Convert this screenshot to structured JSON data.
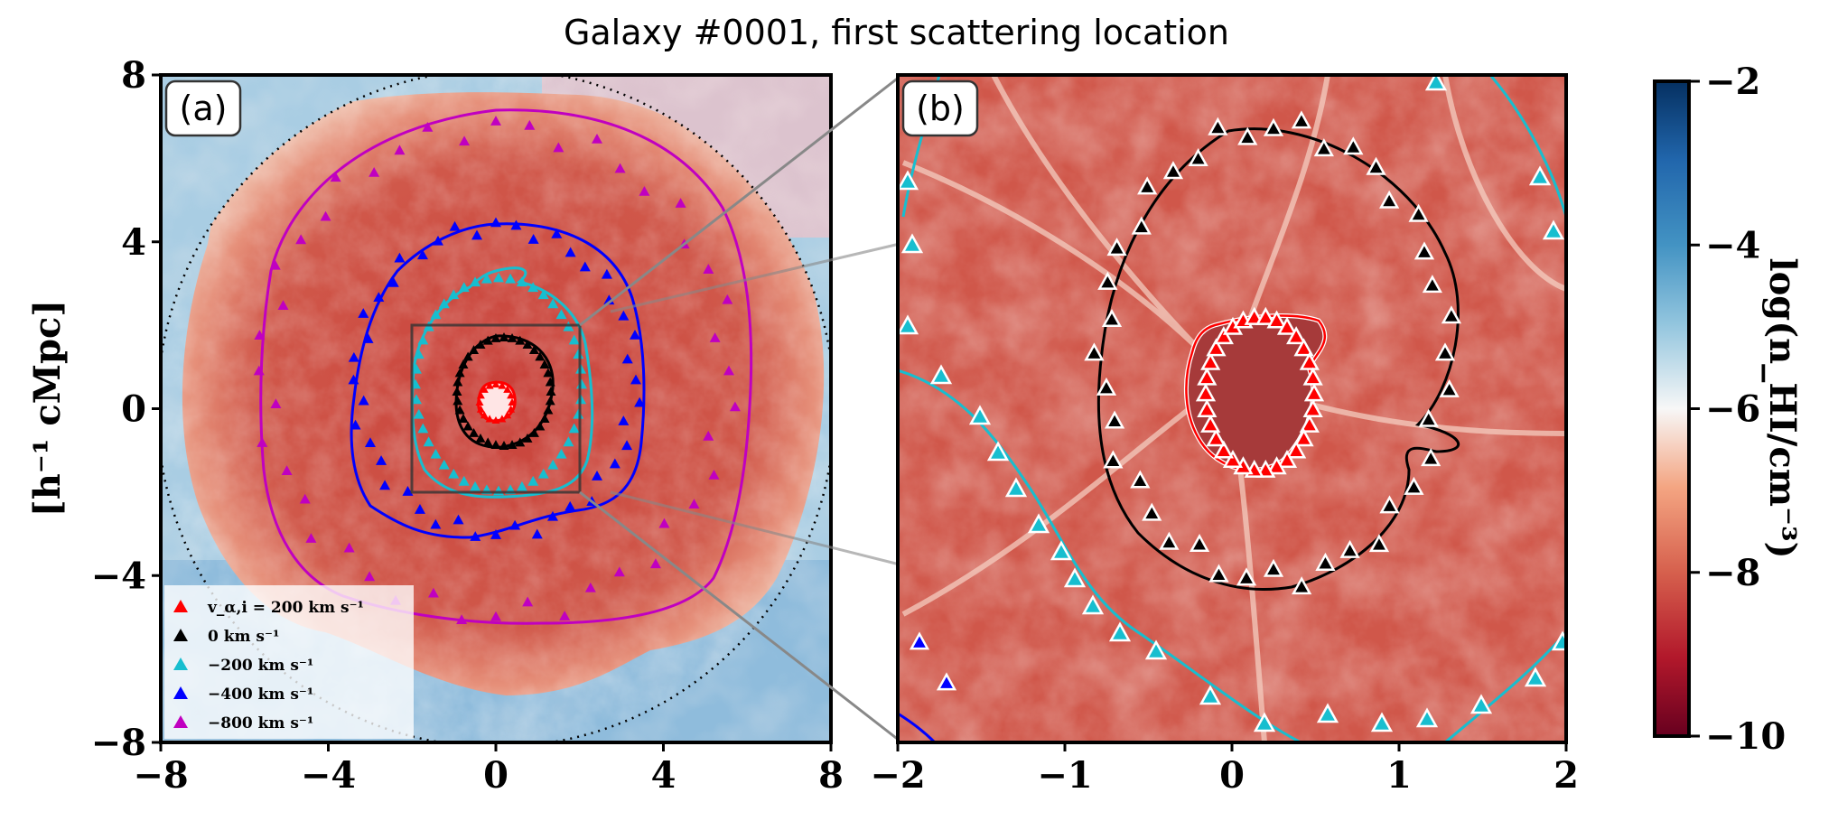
{
  "title": "Galaxy #0001, first scattering location",
  "panels": {
    "a": {
      "label": "(a)"
    },
    "b": {
      "label": "(b)"
    }
  },
  "ylabel": "[h⁻¹ cMpc]",
  "colorbar": {
    "label": "log(n_HI/cm⁻³)",
    "ticks": [
      "−2",
      "−4",
      "−6",
      "−8",
      "−10"
    ],
    "range": [
      -10,
      -2
    ],
    "colors": {
      "low": "#67001f",
      "mid": "#f7f7f7",
      "high": "#053061"
    }
  },
  "legend": [
    {
      "label": "v_α,i = 200 km s⁻¹",
      "color": "#ff0000"
    },
    {
      "label": "0 km s⁻¹",
      "color": "#000000"
    },
    {
      "label": "−200 km s⁻¹",
      "color": "#17becf"
    },
    {
      "label": "−400 km s⁻¹",
      "color": "#0000ff"
    },
    {
      "label": "−800 km s⁻¹",
      "color": "#c000c0"
    }
  ],
  "chart_data": [
    {
      "type": "heatmap",
      "panel": "(a)",
      "xlim": [
        -8,
        8
      ],
      "ylim": [
        -8,
        8
      ],
      "xticks": [
        "−8",
        "−4",
        "0",
        "4",
        "8"
      ],
      "yticks": [
        "8",
        "4",
        "0",
        "−4",
        "−8"
      ],
      "inset_box": {
        "x": [
          -2,
          2
        ],
        "y": [
          -2,
          2
        ]
      },
      "contours": [
        {
          "velocity": "−800 km s⁻¹",
          "approx_radius": 5.5,
          "color": "#c000c0"
        },
        {
          "velocity": "−400 km s⁻¹",
          "approx_radius": 3.6,
          "color": "#0000ff"
        },
        {
          "velocity": "−200 km s⁻¹",
          "approx_radius": 2.1,
          "color": "#17becf"
        },
        {
          "velocity": "0 km s⁻¹",
          "approx_radius": 1.3,
          "color": "#000000"
        },
        {
          "velocity": "200 km s⁻¹",
          "approx_radius": 0.4,
          "color": "#ff0000"
        }
      ]
    },
    {
      "type": "heatmap",
      "panel": "(b)",
      "xlim": [
        -2,
        2
      ],
      "ylim": [
        -2,
        2
      ],
      "xticks": [
        "−2",
        "−1",
        "0",
        "1",
        "2"
      ],
      "contours": [
        {
          "velocity": "0 km s⁻¹",
          "approx_radius": 1.3,
          "color": "#000000"
        },
        {
          "velocity": "200 km s⁻¹",
          "approx_radius": 0.4,
          "color": "#ff0000"
        },
        {
          "velocity": "−200 km s⁻¹",
          "approx_radius": 2.1,
          "color": "#17becf"
        },
        {
          "velocity": "−400 km s⁻¹",
          "approx_radius": 3.6,
          "color": "#0000ff"
        }
      ]
    }
  ]
}
